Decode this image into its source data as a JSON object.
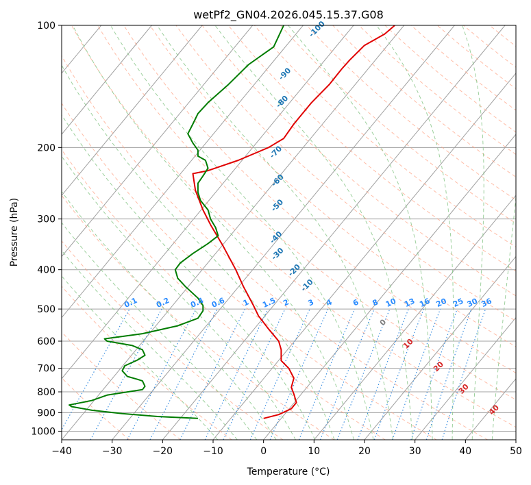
{
  "chart_data": {
    "type": "line",
    "title": "wetPf2_GN04.2026.045.15.37.G08",
    "xlabel": "Temperature (°C)",
    "ylabel": "Pressure (hPa)",
    "xlim": [
      -40,
      50
    ],
    "ylim": [
      1050,
      100
    ],
    "y_scale": "log",
    "x_ticks": [
      -40,
      -30,
      -20,
      -10,
      0,
      10,
      20,
      30,
      40,
      50
    ],
    "x_tick_labels": [
      "−40",
      "−30",
      "−20",
      "−10",
      "0",
      "10",
      "20",
      "30",
      "40",
      "50"
    ],
    "y_ticks": [
      100,
      200,
      300,
      400,
      500,
      600,
      700,
      800,
      900,
      1000
    ],
    "y_tick_labels": [
      "100",
      "200",
      "300",
      "400",
      "500",
      "600",
      "700",
      "800",
      "900",
      "1000"
    ],
    "grid": true,
    "series": [
      {
        "color": "#e00000",
        "points": [
          [
            0,
            930
          ],
          [
            3,
            910
          ],
          [
            5.5,
            880
          ],
          [
            6.5,
            850
          ],
          [
            6,
            810
          ],
          [
            5.5,
            780
          ],
          [
            6,
            740
          ],
          [
            5,
            700
          ],
          [
            3.5,
            670
          ],
          [
            3.5,
            630
          ],
          [
            3,
            600
          ],
          [
            1,
            560
          ],
          [
            -1,
            520
          ],
          [
            -2,
            490
          ],
          [
            -4,
            440
          ],
          [
            -5.5,
            400
          ],
          [
            -8,
            350
          ],
          [
            -10.5,
            310
          ],
          [
            -12,
            285
          ],
          [
            -13.5,
            255
          ],
          [
            -14,
            232
          ],
          [
            -11,
            228
          ],
          [
            -5,
            215
          ],
          [
            1,
            200
          ],
          [
            4,
            190
          ],
          [
            6,
            175
          ],
          [
            9.5,
            155
          ],
          [
            13,
            140
          ],
          [
            15.5,
            128
          ],
          [
            17,
            122
          ],
          [
            20,
            112
          ],
          [
            24,
            105
          ],
          [
            26,
            100
          ]
        ]
      },
      {
        "color": "#007c00",
        "points": [
          [
            -13,
            930
          ],
          [
            -21,
            920
          ],
          [
            -28,
            905
          ],
          [
            -34,
            888
          ],
          [
            -38,
            870
          ],
          [
            -38.5,
            862
          ],
          [
            -34,
            840
          ],
          [
            -31,
            815
          ],
          [
            -24,
            790
          ],
          [
            -23.5,
            775
          ],
          [
            -24,
            752
          ],
          [
            -25,
            745
          ],
          [
            -27,
            733
          ],
          [
            -28,
            710
          ],
          [
            -27.5,
            690
          ],
          [
            -25,
            668
          ],
          [
            -23.5,
            650
          ],
          [
            -24,
            630
          ],
          [
            -26,
            615
          ],
          [
            -31,
            600
          ],
          [
            -31.5,
            592
          ],
          [
            -24,
            575
          ],
          [
            -17,
            550
          ],
          [
            -13,
            527
          ],
          [
            -12,
            505
          ],
          [
            -12,
            490
          ],
          [
            -13,
            470
          ],
          [
            -15.5,
            440
          ],
          [
            -17,
            420
          ],
          [
            -17.5,
            400
          ],
          [
            -16.5,
            385
          ],
          [
            -14,
            365
          ],
          [
            -11,
            345
          ],
          [
            -9,
            330
          ],
          [
            -9.5,
            315
          ],
          [
            -10.5,
            300
          ],
          [
            -11,
            285
          ],
          [
            -12.5,
            270
          ],
          [
            -13,
            258
          ],
          [
            -13,
            245
          ],
          [
            -12,
            235
          ],
          [
            -11,
            225
          ],
          [
            -11.5,
            215
          ],
          [
            -13,
            210
          ],
          [
            -13,
            203
          ],
          [
            -14,
            195
          ],
          [
            -15,
            185
          ],
          [
            -14,
            175
          ],
          [
            -13,
            165
          ],
          [
            -11,
            155
          ],
          [
            -7,
            140
          ],
          [
            -3,
            125
          ],
          [
            2,
            113
          ],
          [
            4,
            100
          ]
        ]
      }
    ],
    "mixing_ratio_labels": [
      "0.1",
      "0.2",
      "0.4",
      "0.6",
      "1",
      "1.5",
      "2",
      "3",
      "4",
      "6",
      "8",
      "10",
      "13",
      "16",
      "20",
      "25",
      "30",
      "36"
    ],
    "dry_adiabat_labels": [
      "-100",
      "-90",
      "-80",
      "-70",
      "-60",
      "-50",
      "-40",
      "-30",
      "-20",
      "-10"
    ],
    "moist_adiabat_labels": [
      "0",
      "10",
      "20",
      "30",
      "40"
    ],
    "colors": {
      "temperature": "#e00000",
      "dewpoint": "#007c00",
      "isotherm": "#a0a0a0",
      "isobar": "#a0a0a0",
      "dry_adiabat": "#ff9f80",
      "moist_adiabat": "#8cc88c",
      "mixing_ratio": "#3a8ee0",
      "dry_label": "#1f77b4",
      "moist_label": "#d62728",
      "mixing_label": "#2b8cff"
    }
  }
}
